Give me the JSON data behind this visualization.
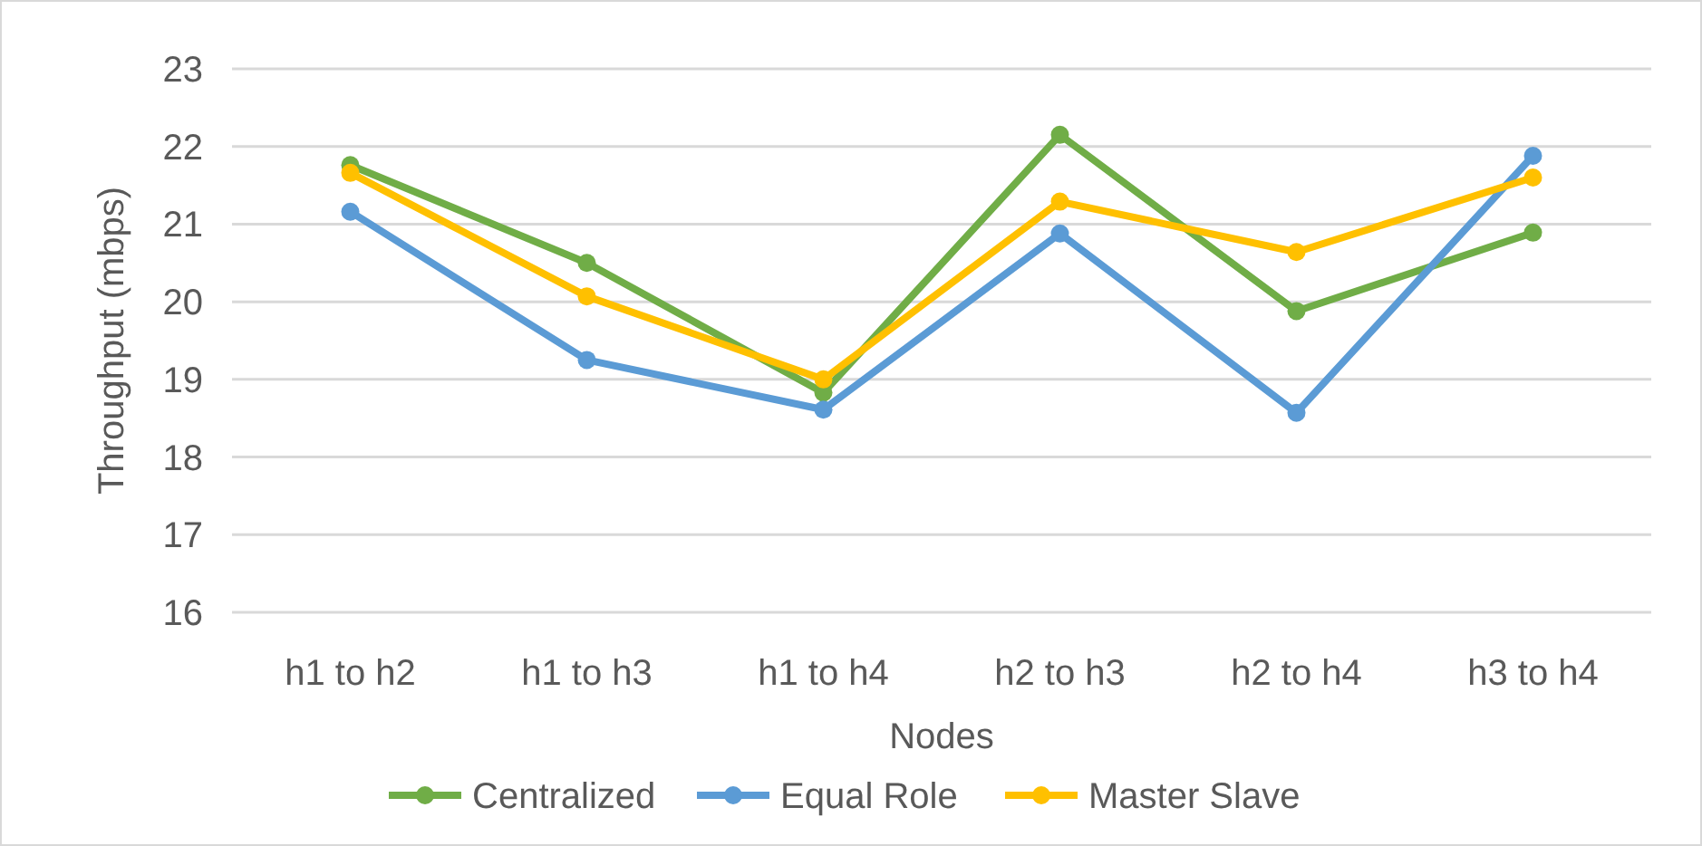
{
  "chart_data": {
    "type": "line",
    "xlabel": "Nodes",
    "ylabel": "Throughput (mbps)",
    "categories": [
      "h1 to h2",
      "h1 to h3",
      "h1 to h4",
      "h2 to h3",
      "h2 to h4",
      "h3 to h4"
    ],
    "series": [
      {
        "name": "Centralized",
        "color": "#70ad47",
        "values": [
          21.76,
          20.5,
          18.83,
          22.15,
          19.88,
          20.89
        ]
      },
      {
        "name": "Equal Role",
        "color": "#5b9bd5",
        "values": [
          21.16,
          19.25,
          18.61,
          20.88,
          18.57,
          21.88
        ]
      },
      {
        "name": "Master Slave",
        "color": "#ffc000",
        "values": [
          21.66,
          20.07,
          19.0,
          21.29,
          20.64,
          21.6
        ]
      }
    ],
    "ylim": [
      16,
      23
    ],
    "yticks": [
      16,
      17,
      18,
      19,
      20,
      21,
      22,
      23
    ],
    "grid": "y",
    "legend": "bottom",
    "marker": "circle",
    "line_style": "solid"
  }
}
